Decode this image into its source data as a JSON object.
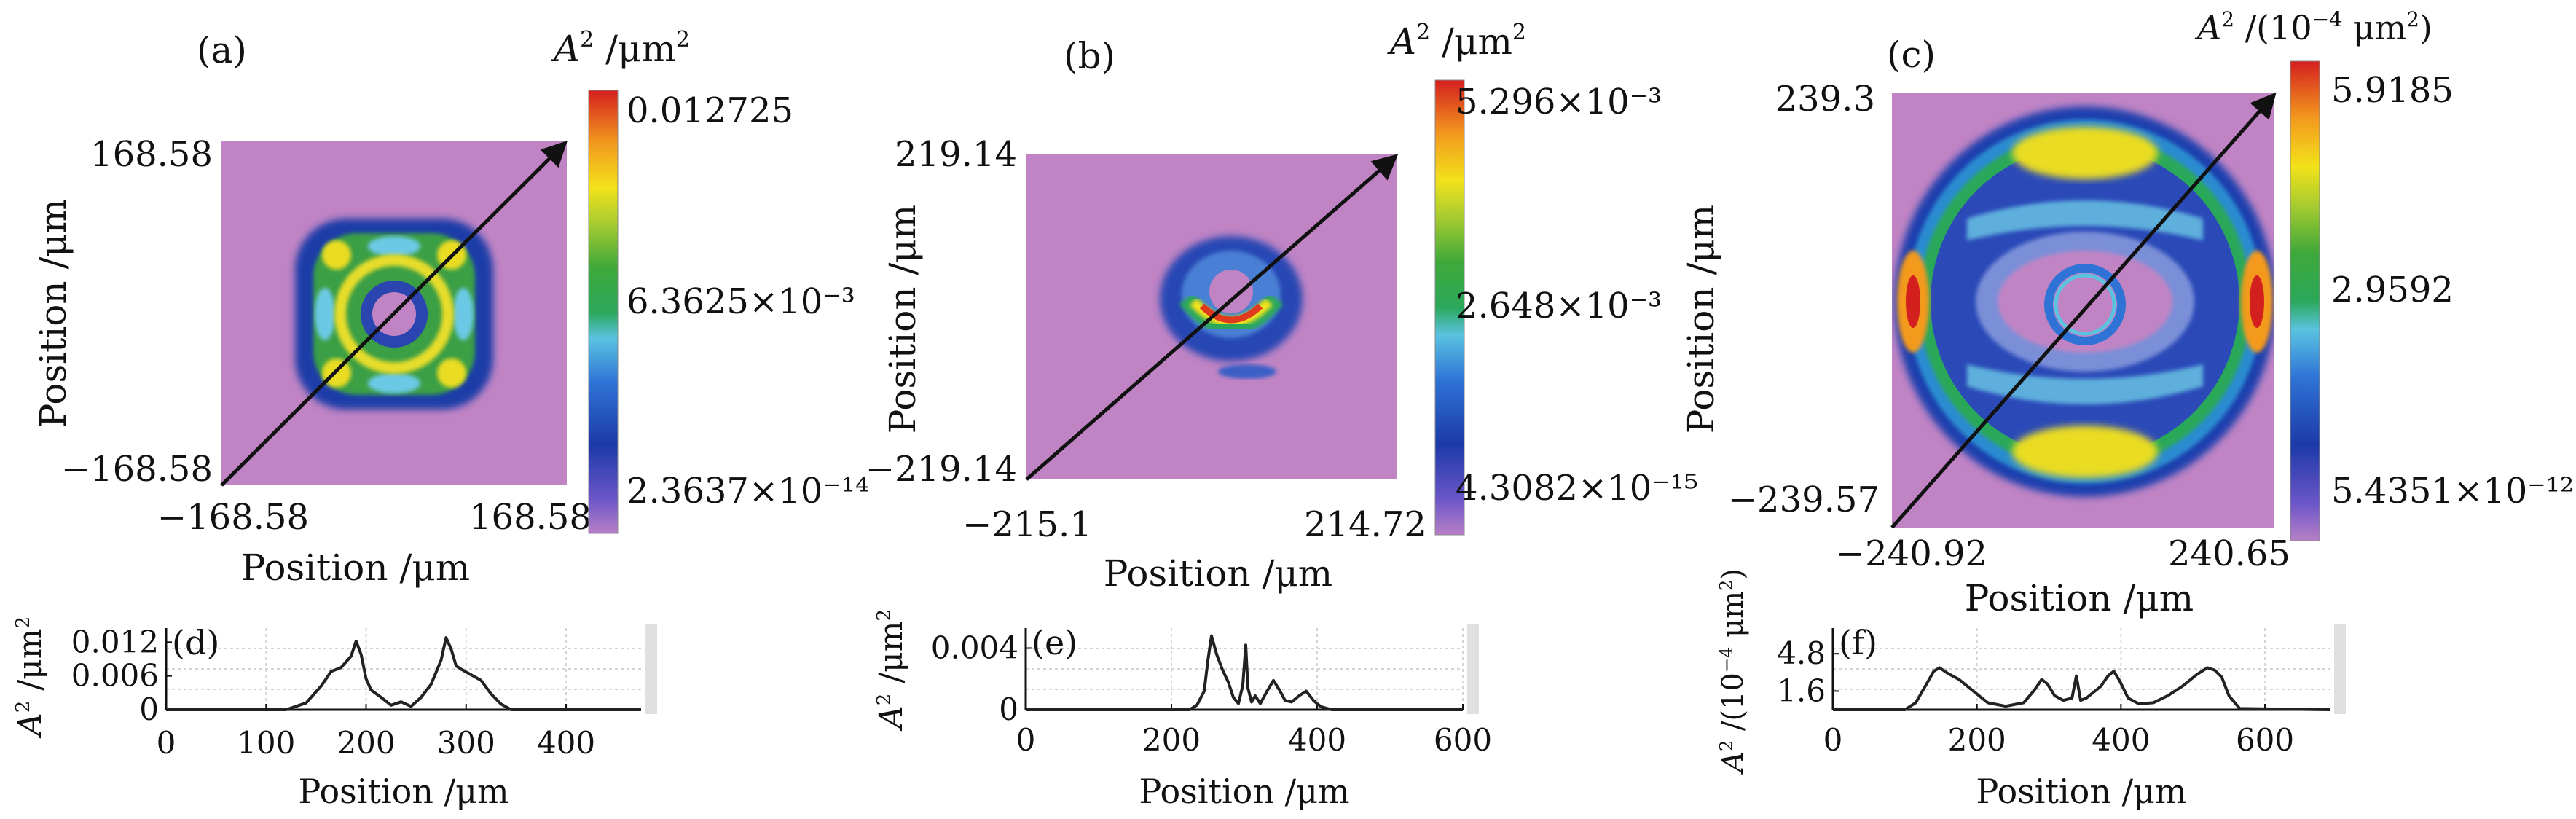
{
  "chart_data": [
    {
      "id": "a",
      "type": "heatmap",
      "panel_label": "(a)",
      "xlabel": "Position /μm",
      "ylabel": "Position /μm",
      "x_ticks": [
        "−168.58",
        "168.58"
      ],
      "y_ticks": [
        "168.58",
        "−168.58"
      ],
      "xlim": [
        -168.58,
        168.58
      ],
      "ylim": [
        -168.58,
        168.58
      ],
      "colorbar": {
        "title": "A² /μm²",
        "ticks": [
          "0.012725",
          "6.3625×10⁻³",
          "2.3637×10⁻¹⁴"
        ],
        "range": [
          2.3637e-14,
          0.012725
        ]
      },
      "pattern": "square ring of green/yellow lobes around a dark central ring",
      "diagonal_arrow": true
    },
    {
      "id": "b",
      "type": "heatmap",
      "panel_label": "(b)",
      "xlabel": "Position /μm",
      "ylabel": "Position /μm",
      "x_ticks": [
        "−215.1",
        "214.72"
      ],
      "y_ticks": [
        "219.14",
        "−219.14"
      ],
      "xlim": [
        -215.1,
        214.72
      ],
      "ylim": [
        -219.14,
        219.14
      ],
      "colorbar": {
        "title": "A² /μm²",
        "ticks": [
          "5.296×10⁻³",
          "2.648×10⁻³",
          "4.3082×10⁻¹⁵"
        ],
        "range": [
          4.3082e-15,
          0.005296
        ]
      },
      "pattern": "small ring with red crescent on lower side",
      "diagonal_arrow": true
    },
    {
      "id": "c",
      "type": "heatmap",
      "panel_label": "(c)",
      "xlabel": "Position /μm",
      "ylabel": "Position /μm",
      "x_ticks": [
        "−240.92",
        "240.65"
      ],
      "y_ticks": [
        "239.3",
        "−239.57"
      ],
      "xlim": [
        -240.92,
        240.65
      ],
      "ylim": [
        -239.57,
        239.3
      ],
      "colorbar": {
        "title": "A² /(10⁻⁴ μm²)",
        "ticks": [
          "5.9185",
          "2.9592",
          "5.4351×10⁻¹²"
        ],
        "range": [
          5.4351e-12,
          5.9185
        ]
      },
      "pattern": "large circular ring with four bright lobes and small central ring",
      "diagonal_arrow": true
    },
    {
      "id": "d",
      "type": "line",
      "panel_label": "(d)",
      "xlabel": "Position /μm",
      "ylabel": "A² /μm²",
      "x_ticks": [
        "0",
        "100",
        "200",
        "300",
        "400"
      ],
      "y_ticks": [
        "0",
        "0.006",
        "0.012"
      ],
      "xlim": [
        0,
        475
      ],
      "ylim": [
        0,
        0.0145
      ],
      "grid": true,
      "series": [
        {
          "x": [
            0,
            120,
            140,
            155,
            165,
            175,
            185,
            190,
            195,
            200,
            205,
            215,
            225,
            235,
            245,
            255,
            265,
            275,
            280,
            285,
            290,
            295,
            305,
            315,
            325,
            335,
            345,
            475
          ],
          "y": [
            0,
            0,
            0.0012,
            0.0042,
            0.0068,
            0.0075,
            0.0095,
            0.0122,
            0.0098,
            0.0055,
            0.0035,
            0.0022,
            0.0008,
            0.0014,
            0.0006,
            0.0022,
            0.0045,
            0.0088,
            0.0128,
            0.0108,
            0.0078,
            0.0072,
            0.0062,
            0.0052,
            0.0028,
            0.001,
            0,
            0
          ]
        }
      ]
    },
    {
      "id": "e",
      "type": "line",
      "panel_label": "(e)",
      "xlabel": "Position /μm",
      "ylabel": "A² /μm²",
      "x_ticks": [
        "0",
        "200",
        "400",
        "600"
      ],
      "y_ticks": [
        "0",
        "0.004"
      ],
      "xlim": [
        0,
        600
      ],
      "ylim": [
        0,
        0.0053
      ],
      "grid": true,
      "series": [
        {
          "x": [
            0,
            225,
            235,
            245,
            250,
            255,
            262,
            270,
            278,
            285,
            292,
            298,
            302,
            305,
            310,
            315,
            322,
            330,
            340,
            348,
            356,
            365,
            375,
            385,
            395,
            405,
            420,
            600
          ],
          "y": [
            0,
            0,
            0.0003,
            0.0012,
            0.0032,
            0.0048,
            0.0036,
            0.0026,
            0.0018,
            0.0008,
            0.0004,
            0.0016,
            0.0042,
            0.0014,
            0.0005,
            0.0009,
            0.0004,
            0.0011,
            0.0019,
            0.0013,
            0.0006,
            0.0005,
            0.0009,
            0.0012,
            0.0006,
            0.0002,
            0,
            0
          ]
        }
      ]
    },
    {
      "id": "f",
      "type": "line",
      "panel_label": "(f)",
      "xlabel": "Position /μm",
      "ylabel": "A² /(10⁻⁴ μm²)",
      "x_ticks": [
        "0",
        "200",
        "400",
        "600"
      ],
      "y_ticks": [
        "1.6",
        "4.8"
      ],
      "xlim": [
        0,
        690
      ],
      "ylim": [
        0,
        7.0
      ],
      "grid": true,
      "series": [
        {
          "x": [
            0,
            100,
            115,
            130,
            140,
            148,
            160,
            175,
            195,
            215,
            240,
            265,
            280,
            290,
            298,
            308,
            320,
            332,
            338,
            344,
            352,
            362,
            372,
            382,
            390,
            398,
            410,
            425,
            445,
            465,
            485,
            505,
            520,
            530,
            540,
            550,
            565,
            690
          ],
          "y": [
            0,
            0,
            0.6,
            2.2,
            3.3,
            3.6,
            3.1,
            2.6,
            1.6,
            0.6,
            0.3,
            0.6,
            1.7,
            2.6,
            2.2,
            1.2,
            0.8,
            1.0,
            2.9,
            0.8,
            1.0,
            1.5,
            2.0,
            2.9,
            3.3,
            2.5,
            1.0,
            0.5,
            0.6,
            1.2,
            2.0,
            3.0,
            3.6,
            3.4,
            2.8,
            1.2,
            0.1,
            0
          ]
        }
      ]
    }
  ]
}
